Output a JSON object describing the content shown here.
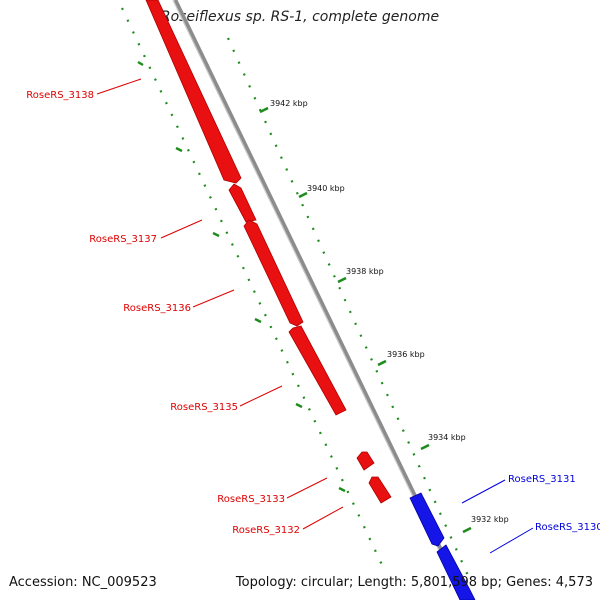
{
  "title": "Roseiflexus sp. RS-1, complete genome",
  "accession": "Accession: NC_009523",
  "summary": "Topology: circular; Length: 5,801,598 bp; Genes: 4,573",
  "ticks": [
    "3942 kbp",
    "3940 kbp",
    "3938 kbp",
    "3936 kbp",
    "3934 kbp",
    "3932 kbp"
  ],
  "genes": [
    {
      "name": "RoseRS_3138",
      "strand": "reverse",
      "color": "#e00000"
    },
    {
      "name": "RoseRS_3137",
      "strand": "reverse",
      "color": "#e00000"
    },
    {
      "name": "RoseRS_3136",
      "strand": "reverse",
      "color": "#e00000"
    },
    {
      "name": "RoseRS_3135",
      "strand": "reverse",
      "color": "#e00000"
    },
    {
      "name": "RoseRS_3133",
      "strand": "reverse",
      "color": "#e00000"
    },
    {
      "name": "RoseRS_3132",
      "strand": "reverse",
      "color": "#e00000"
    },
    {
      "name": "RoseRS_3131",
      "strand": "forward",
      "color": "#0000e0"
    },
    {
      "name": "RoseRS_3130",
      "strand": "forward",
      "color": "#0000e0"
    }
  ],
  "colors": {
    "reverse": "#e00000",
    "forward": "#0000e0",
    "backbone": "#8c8c8c",
    "gc_dots": "#1e8c1e"
  }
}
